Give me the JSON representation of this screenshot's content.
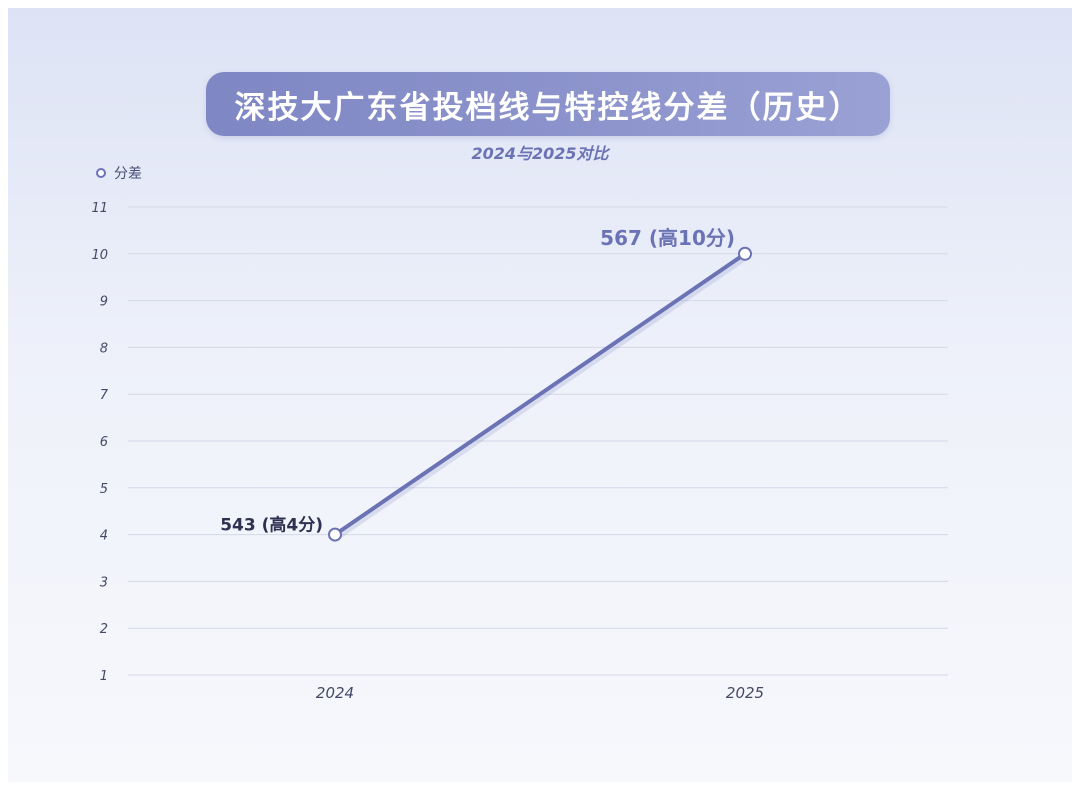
{
  "header": {
    "title": "深技大广东省投档线与特控线分差（历史）",
    "subtitle": "2024与2025对比"
  },
  "legend": {
    "label": "分差"
  },
  "colors": {
    "line": "#6b73b5",
    "grid": "#d4d8e8",
    "tick_text": "#444a66"
  },
  "chart_data": {
    "type": "line",
    "title": "深技大广东省投档线与特控线分差（历史）",
    "subtitle": "2024与2025对比",
    "categories": [
      "2024",
      "2025"
    ],
    "series": [
      {
        "name": "分差",
        "values": [
          4,
          10
        ],
        "labels": [
          "543 (高4分)",
          "567 (高10分)"
        ]
      }
    ],
    "ylim": [
      1,
      11
    ],
    "yticks": [
      1,
      2,
      3,
      4,
      5,
      6,
      7,
      8,
      9,
      10,
      11
    ],
    "grid": true,
    "legend": "top-left"
  }
}
